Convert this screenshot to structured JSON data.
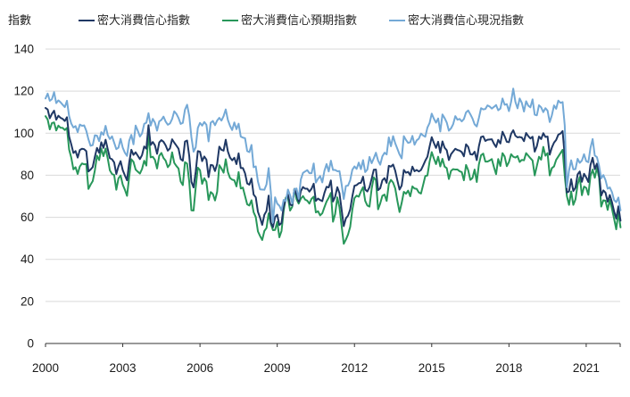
{
  "chart": {
    "y_axis_unit_label": "指數"
  },
  "chart_data": {
    "type": "line",
    "title": "",
    "ylabel": "指數",
    "xlabel": "",
    "x_unit": "monthly, decimal years",
    "x_start_year": 2000,
    "x_months_per_point": 1,
    "xlim": [
      2000,
      2022.32
    ],
    "ylim": [
      0,
      140
    ],
    "x_ticks": [
      2000,
      2003,
      2006,
      2009,
      2012,
      2015,
      2018,
      2021
    ],
    "y_ticks": [
      0,
      20,
      40,
      60,
      80,
      100,
      120,
      140
    ],
    "grid": "horizontal",
    "legend_position": "top",
    "grid_color": "#d9d9d9",
    "axis_color": "#333333",
    "tick_label_color": "#1a1a1a",
    "series": [
      {
        "name": "密大消費信心指數",
        "color": "#1F3864",
        "values": [
          112.0,
          111.3,
          107.1,
          109.2,
          110.7,
          106.4,
          108.3,
          107.3,
          106.8,
          105.8,
          107.6,
          98.4,
          94.7,
          90.6,
          91.5,
          88.4,
          92.0,
          92.6,
          92.4,
          91.5,
          81.8,
          82.7,
          83.9,
          88.8,
          93.0,
          90.7,
          95.7,
          93.0,
          96.9,
          92.4,
          88.1,
          87.6,
          86.1,
          80.6,
          84.2,
          86.7,
          82.4,
          79.9,
          77.6,
          86.0,
          92.1,
          89.7,
          90.9,
          89.3,
          87.7,
          89.6,
          93.7,
          92.6,
          103.8,
          94.4,
          95.8,
          94.2,
          90.2,
          95.6,
          96.7,
          95.9,
          94.2,
          91.7,
          92.8,
          97.1,
          95.5,
          94.1,
          92.6,
          87.7,
          86.9,
          96.0,
          96.5,
          89.1,
          76.9,
          74.2,
          81.6,
          91.5,
          91.2,
          86.7,
          88.9,
          87.4,
          79.1,
          84.9,
          84.7,
          82.0,
          85.4,
          93.6,
          92.1,
          91.7,
          96.9,
          91.3,
          88.4,
          87.1,
          88.3,
          85.3,
          90.4,
          83.4,
          83.4,
          80.9,
          76.1,
          75.5,
          78.4,
          70.8,
          69.5,
          62.6,
          59.8,
          56.4,
          61.2,
          63.0,
          70.3,
          57.6,
          55.3,
          60.1,
          61.2,
          56.3,
          57.3,
          65.1,
          68.7,
          70.8,
          66.0,
          65.7,
          73.5,
          70.6,
          67.4,
          72.5,
          74.4,
          73.6,
          73.6,
          72.2,
          73.6,
          76.0,
          67.8,
          68.9,
          68.2,
          67.7,
          71.6,
          74.5,
          74.2,
          77.5,
          67.5,
          69.8,
          74.3,
          71.5,
          63.7,
          55.8,
          59.5,
          60.8,
          63.7,
          69.9,
          75.0,
          75.3,
          76.2,
          76.4,
          79.3,
          73.2,
          72.3,
          74.3,
          78.3,
          82.6,
          82.7,
          72.9,
          73.8,
          77.6,
          78.6,
          76.4,
          84.5,
          84.1,
          85.1,
          82.1,
          77.5,
          73.2,
          75.1,
          82.5,
          81.2,
          81.6,
          80.0,
          84.1,
          81.9,
          82.5,
          81.8,
          82.5,
          84.6,
          86.9,
          88.8,
          93.6,
          98.1,
          95.4,
          93.0,
          95.9,
          90.7,
          96.1,
          93.1,
          91.9,
          87.2,
          90.0,
          91.3,
          92.6,
          92.0,
          91.7,
          91.0,
          89.0,
          94.7,
          93.5,
          90.0,
          89.8,
          91.2,
          87.2,
          93.8,
          98.2,
          98.5,
          96.3,
          96.9,
          97.0,
          97.1,
          95.0,
          93.4,
          96.8,
          95.1,
          100.7,
          98.5,
          95.9,
          95.7,
          99.7,
          101.4,
          98.8,
          98.0,
          98.2,
          97.9,
          96.2,
          100.1,
          98.6,
          97.5,
          98.3,
          91.2,
          93.8,
          98.4,
          97.2,
          100.0,
          98.2,
          98.4,
          89.8,
          93.2,
          95.5,
          96.8,
          99.3,
          99.8,
          101.0,
          89.1,
          71.8,
          72.3,
          78.1,
          72.5,
          74.1,
          80.4,
          81.8,
          76.9,
          80.7,
          79.0,
          76.8,
          84.9,
          88.3,
          82.9,
          85.5,
          81.2,
          70.3,
          72.8,
          71.7,
          67.4,
          70.6,
          67.2,
          62.8,
          59.4,
          65.2,
          58.4
        ]
      },
      {
        "name": "密大消費信心預期指數",
        "color": "#28975A",
        "values": [
          108.1,
          106.5,
          101.8,
          104.8,
          105.1,
          101.3,
          103.6,
          102.6,
          102.5,
          101.5,
          102.5,
          92.2,
          88.4,
          82.8,
          83.8,
          80.6,
          84.2,
          85.6,
          85.2,
          85.3,
          73.5,
          75.5,
          77.2,
          82.3,
          89.3,
          87.2,
          92.7,
          89.1,
          92.7,
          88.0,
          82.3,
          80.6,
          80.1,
          73.1,
          78.5,
          79.9,
          75.5,
          73.1,
          70.2,
          79.3,
          87.6,
          86.4,
          82.7,
          81.7,
          80.8,
          83.0,
          86.9,
          84.6,
          100.1,
          88.5,
          88.8,
          87.3,
          83.2,
          89.2,
          90.6,
          88.2,
          86.9,
          83.8,
          85.2,
          90.9,
          85.9,
          84.4,
          83.2,
          77.0,
          75.3,
          86.2,
          85.5,
          76.9,
          63.3,
          63.2,
          74.2,
          83.6,
          82.4,
          75.9,
          78.6,
          76.9,
          68.2,
          72.0,
          71.1,
          68.0,
          72.1,
          84.8,
          83.2,
          81.2,
          87.6,
          81.5,
          78.7,
          77.9,
          77.6,
          74.7,
          81.5,
          73.7,
          74.1,
          70.1,
          66.2,
          65.6,
          68.1,
          62.4,
          60.1,
          53.3,
          51.1,
          49.2,
          53.5,
          54.9,
          61.9,
          57.0,
          53.9,
          54.0,
          57.8,
          50.5,
          53.5,
          63.1,
          69.4,
          69.2,
          63.2,
          65.0,
          73.5,
          68.6,
          66.5,
          68.9,
          70.1,
          68.4,
          67.9,
          66.5,
          68.8,
          69.8,
          62.3,
          62.9,
          60.9,
          61.9,
          64.8,
          67.5,
          69.3,
          71.6,
          57.9,
          61.6,
          69.5,
          64.8,
          56.0,
          47.4,
          49.4,
          51.8,
          55.4,
          63.6,
          69.1,
          70.3,
          69.8,
          72.3,
          74.3,
          67.8,
          65.6,
          65.1,
          73.5,
          79.0,
          77.6,
          63.8,
          66.6,
          70.2,
          70.8,
          67.8,
          75.8,
          77.8,
          76.5,
          73.7,
          67.8,
          62.5,
          66.8,
          72.1,
          71.2,
          72.7,
          70.0,
          74.7,
          73.7,
          73.5,
          71.8,
          71.3,
          75.4,
          79.6,
          79.9,
          86.4,
          91.0,
          88.0,
          85.3,
          88.8,
          84.2,
          87.8,
          84.1,
          83.4,
          78.2,
          82.1,
          82.9,
          82.7,
          82.7,
          81.9,
          81.5,
          77.6,
          84.9,
          82.4,
          77.8,
          78.7,
          82.7,
          76.8,
          85.2,
          89.5,
          90.3,
          86.5,
          86.5,
          87.0,
          87.7,
          83.9,
          80.5,
          87.7,
          84.4,
          90.5,
          88.9,
          84.3,
          86.3,
          90.0,
          88.8,
          88.4,
          89.1,
          86.3,
          87.3,
          87.1,
          90.5,
          89.3,
          88.1,
          87.0,
          79.9,
          84.4,
          88.8,
          87.4,
          93.5,
          89.3,
          90.5,
          79.9,
          83.4,
          84.2,
          87.3,
          88.9,
          90.5,
          92.1,
          79.7,
          70.1,
          65.9,
          72.3,
          65.9,
          68.5,
          75.6,
          79.2,
          70.5,
          74.6,
          74.0,
          70.7,
          79.7,
          82.7,
          78.8,
          83.5,
          79.0,
          65.1,
          68.1,
          67.9,
          63.5,
          68.3,
          64.1,
          59.4,
          54.3,
          62.5,
          55.2
        ]
      },
      {
        "name": "密大消費信心現況指數",
        "color": "#74A9D6",
        "values": [
          116.5,
          118.8,
          115.4,
          116.2,
          119.5,
          114.3,
          115.6,
          114.7,
          113.5,
          112.4,
          115.4,
          108.1,
          104.6,
          102.7,
          103.4,
          100.5,
          104.1,
          103.5,
          103.7,
          101.2,
          97.1,
          94.0,
          94.3,
          99.0,
          98.8,
          96.2,
          100.5,
          99.2,
          103.5,
          99.1,
          97.2,
          98.5,
          95.5,
          92.4,
          93.1,
          97.3,
          93.1,
          90.7,
          89.2,
          96.4,
          99.2,
          94.7,
          103.6,
          101.2,
          98.4,
          99.9,
          104.4,
          105.0,
          109.5,
          103.6,
          106.8,
          105.0,
          101.2,
          105.6,
          106.3,
          107.9,
          105.5,
          104.0,
          104.6,
          106.7,
          110.4,
          109.2,
          107.2,
          104.4,
          104.9,
          111.2,
          113.5,
          108.2,
          98.1,
          91.2,
          93.3,
          102.5,
          104.9,
          103.6,
          105.3,
          104.0,
          96.1,
          105.0,
          105.8,
          103.8,
          106.0,
          107.3,
          106.0,
          108.1,
          111.3,
          106.3,
          103.5,
          101.5,
          105.1,
          101.9,
          104.5,
          98.4,
          97.9,
          97.6,
          91.5,
          91.0,
          94.4,
          83.8,
          84.2,
          77.0,
          73.3,
          73.2,
          73.1,
          75.6,
          83.4,
          72.2,
          57.5,
          69.5,
          66.5,
          65.5,
          63.3,
          68.3,
          67.7,
          73.2,
          70.5,
          66.6,
          73.4,
          73.7,
          68.8,
          78.0,
          81.1,
          81.8,
          82.4,
          81.0,
          81.0,
          85.6,
          76.5,
          78.3,
          79.6,
          76.6,
          82.1,
          85.3,
          81.8,
          86.9,
          82.5,
          82.5,
          81.9,
          82.0,
          75.8,
          68.7,
          74.9,
          75.1,
          77.6,
          82.6,
          84.2,
          83.0,
          86.0,
          82.9,
          87.2,
          81.5,
          82.7,
          88.7,
          85.7,
          88.1,
          90.7,
          87.0,
          85.0,
          89.0,
          90.7,
          89.9,
          98.0,
          93.8,
          98.6,
          95.2,
          92.6,
          89.9,
          88.0,
          98.6,
          96.8,
          95.4,
          95.7,
          98.7,
          94.5,
          96.6,
          97.4,
          99.8,
          98.9,
          98.3,
          102.7,
          104.8,
          109.3,
          106.9,
          105.0,
          107.0,
          100.8,
          108.9,
          107.2,
          105.1,
          101.2,
          102.3,
          104.3,
          108.1,
          106.4,
          106.8,
          105.6,
          106.7,
          109.9,
          110.8,
          109.0,
          107.0,
          104.2,
          103.2,
          107.3,
          111.9,
          111.3,
          111.5,
          113.2,
          112.7,
          111.7,
          112.5,
          113.4,
          110.9,
          111.7,
          116.5,
          113.5,
          113.8,
          110.5,
          114.9,
          121.2,
          114.9,
          111.8,
          116.5,
          114.4,
          110.3,
          115.2,
          113.1,
          112.3,
          116.1,
          108.8,
          108.5,
          113.3,
          112.3,
          110.0,
          111.9,
          110.7,
          105.3,
          108.5,
          113.2,
          111.6,
          115.5,
          114.4,
          114.8,
          103.7,
          74.3,
          82.3,
          87.1,
          82.8,
          82.9,
          87.8,
          85.9,
          87.0,
          90.0,
          86.7,
          86.2,
          93.0,
          97.2,
          89.4,
          88.6,
          84.5,
          78.5,
          80.1,
          77.7,
          73.6,
          74.2,
          72.0,
          68.2,
          67.2,
          69.4,
          63.3
        ]
      }
    ]
  }
}
